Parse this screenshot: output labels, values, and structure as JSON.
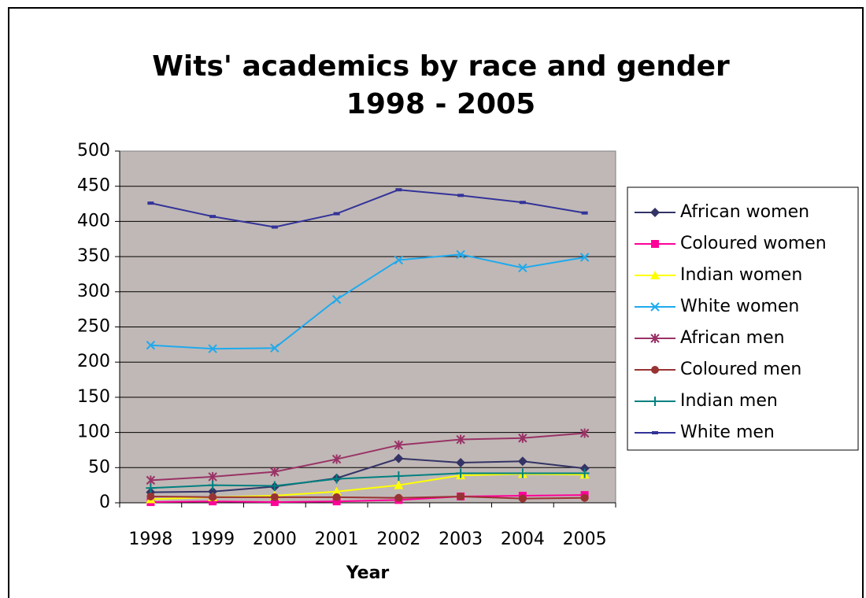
{
  "chart_data": {
    "type": "line",
    "title": [
      "Wits' academics by race and gender",
      "1998 - 2005"
    ],
    "x_label": "Year",
    "categories": [
      "1998",
      "1999",
      "2000",
      "2001",
      "2002",
      "2003",
      "2004",
      "2005"
    ],
    "ylim": [
      0,
      500
    ],
    "yticks": [
      0,
      50,
      100,
      150,
      200,
      250,
      300,
      350,
      400,
      450,
      500
    ],
    "grid": true,
    "legend": "right",
    "series": [
      {
        "name": "African women",
        "color": "#333366",
        "marker": "diamond",
        "values": [
          15,
          16,
          23,
          35,
          63,
          57,
          59,
          49
        ]
      },
      {
        "name": "Coloured women",
        "color": "#ff0099",
        "marker": "square",
        "values": [
          1,
          2,
          1,
          2,
          4,
          9,
          10,
          11
        ]
      },
      {
        "name": "Indian women",
        "color": "#ffff00",
        "marker": "triangle",
        "values": [
          5,
          8,
          10,
          16,
          25,
          39,
          41,
          40
        ]
      },
      {
        "name": "White women",
        "color": "#1eaaee",
        "marker": "x",
        "values": [
          224,
          219,
          220,
          289,
          345,
          353,
          334,
          349
        ]
      },
      {
        "name": "African men",
        "color": "#993366",
        "marker": "asterisk",
        "values": [
          32,
          37,
          44,
          62,
          82,
          90,
          92,
          99
        ]
      },
      {
        "name": "Coloured men",
        "color": "#993333",
        "marker": "circle",
        "values": [
          9,
          8,
          8,
          8,
          7,
          9,
          6,
          7
        ]
      },
      {
        "name": "Indian men",
        "color": "#008080",
        "marker": "plus",
        "values": [
          21,
          25,
          24,
          34,
          38,
          42,
          42,
          42
        ]
      },
      {
        "name": "White men",
        "color": "#333399",
        "marker": "dash",
        "values": [
          426,
          407,
          392,
          411,
          445,
          437,
          427,
          412
        ]
      }
    ]
  }
}
